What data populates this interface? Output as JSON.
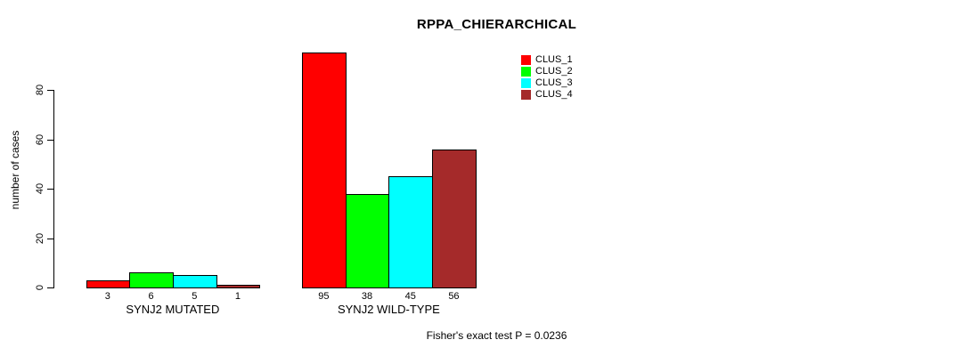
{
  "chart_data": {
    "type": "bar",
    "title": "RPPA_CHIERARCHICAL",
    "ylabel": "number of cases",
    "xlabel": "",
    "categories": [
      "SYNJ2 MUTATED",
      "SYNJ2 WILD-TYPE"
    ],
    "series": [
      {
        "name": "CLUS_1",
        "color": "#ff0000",
        "values": [
          3,
          95
        ]
      },
      {
        "name": "CLUS_2",
        "color": "#00ff00",
        "values": [
          6,
          38
        ]
      },
      {
        "name": "CLUS_3",
        "color": "#00ffff",
        "values": [
          5,
          45
        ]
      },
      {
        "name": "CLUS_4",
        "color": "#a52a2a",
        "values": [
          1,
          56
        ]
      }
    ],
    "bar_value_labels": [
      [
        3,
        6,
        5,
        1
      ],
      [
        95,
        38,
        45,
        56
      ]
    ],
    "yticks": [
      0,
      20,
      40,
      60,
      80
    ],
    "ylim": [
      0,
      95
    ],
    "grid": false,
    "bar_border_color": "#000000",
    "legend_position": "top-right",
    "legend_entries": [
      "CLUS_1",
      "CLUS_2",
      "CLUS_3",
      "CLUS_4"
    ],
    "annotation": "Fisher's exact test P = 0.0236"
  }
}
